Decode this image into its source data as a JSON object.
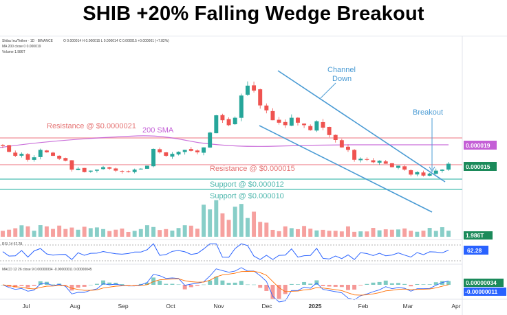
{
  "headline": "SHIB +20% Falling Wedge Breakout",
  "legend": {
    "symbol": "Shiba Inu/Tether · 1D · BINANCE",
    "ohlc": "O 0.000014  H 0.000015  L 0.000014  C 0.000015  +0.000001 (+7.82%)",
    "ma": "MA 200 close 0  0.000019",
    "volume": "Volume  1.986T",
    "rsi": "RSI 14  62.28",
    "macd": "MACD 12 26 close 9  0.00000034  -0.00000011  0.00000045"
  },
  "annotations": {
    "resistance_high": "Resistance @ $0.0000021",
    "sma": "200 SMA",
    "resistance_low": "Resistance @ $0.000015",
    "support_high": "Support @ $0.000012",
    "support_low": "Support @ $0.000010",
    "channel_line1": "Channel",
    "channel_line2": "Down",
    "breakout": "Breakout"
  },
  "price_labels": {
    "sma": "0.000019",
    "price": "0.000015",
    "volume": "1.986T",
    "rsi": "62.28",
    "macd": "0.00000034",
    "signal": "-0.00000011"
  },
  "colors": {
    "up": "#26a69a",
    "down": "#ef5350",
    "sma": "#c45fd6",
    "resistance": "#f4a0a8",
    "support": "#66c9bd",
    "channel": "#4a9bd4",
    "rsi": "#2962ff"
  },
  "chart_data": {
    "type": "candlestick",
    "title": "SHIB +20% Falling Wedge Breakout",
    "x_ticks": [
      "Jul",
      "Aug",
      "Sep",
      "Oct",
      "Nov",
      "Dec",
      "2025",
      "Feb",
      "Mar",
      "Apr"
    ],
    "resistance_levels": [
      2.1e-06,
      1.5e-05
    ],
    "support_levels": [
      1.2e-05,
      1e-05
    ],
    "last_price": 1.5e-05,
    "sma_200_value": 1.9e-05,
    "volume_last": "1.986T",
    "rsi_last": 62.28,
    "macd_last": 3.4e-07,
    "macd_signal_last": -1.1e-07,
    "series": [
      {
        "name": "Close",
        "values": [
          1.88e-05,
          1.76e-05,
          1.68e-05,
          1.72e-05,
          1.6e-05,
          1.65e-05,
          1.8e-05,
          1.75e-05,
          1.68e-05,
          1.62e-05,
          1.58e-05,
          1.4e-05,
          1.42e-05,
          1.35e-05,
          1.38e-05,
          1.4e-05,
          1.45e-05,
          1.42e-05,
          1.38e-05,
          1.36e-05,
          1.35e-05,
          1.4e-05,
          1.42e-05,
          1.48e-05,
          1.82e-05,
          1.75e-05,
          1.68e-05,
          1.72e-05,
          1.76e-05,
          1.8e-05,
          1.78e-05,
          1.75e-05,
          1.85e-05,
          2.15e-05,
          2.5e-05,
          2.4e-05,
          2.3e-05,
          2.45e-05,
          2.9e-05,
          3.1e-05,
          3e-05,
          2.7e-05,
          2.6e-05,
          2.4e-05,
          2.35e-05,
          2.3e-05,
          2.45e-05,
          2.35e-05,
          2.3e-05,
          2.2e-05,
          2.38e-05,
          2.25e-05,
          2.1e-05,
          2e-05,
          1.85e-05,
          1.8e-05,
          1.6e-05,
          1.62e-05,
          1.6e-05,
          1.55e-05,
          1.58e-05,
          1.52e-05,
          1.45e-05,
          1.48e-05,
          1.4e-05,
          1.3e-05,
          1.35e-05,
          1.28e-05,
          1.32e-05,
          1.38e-05,
          1.4e-05,
          1.52e-05
        ]
      }
    ]
  }
}
